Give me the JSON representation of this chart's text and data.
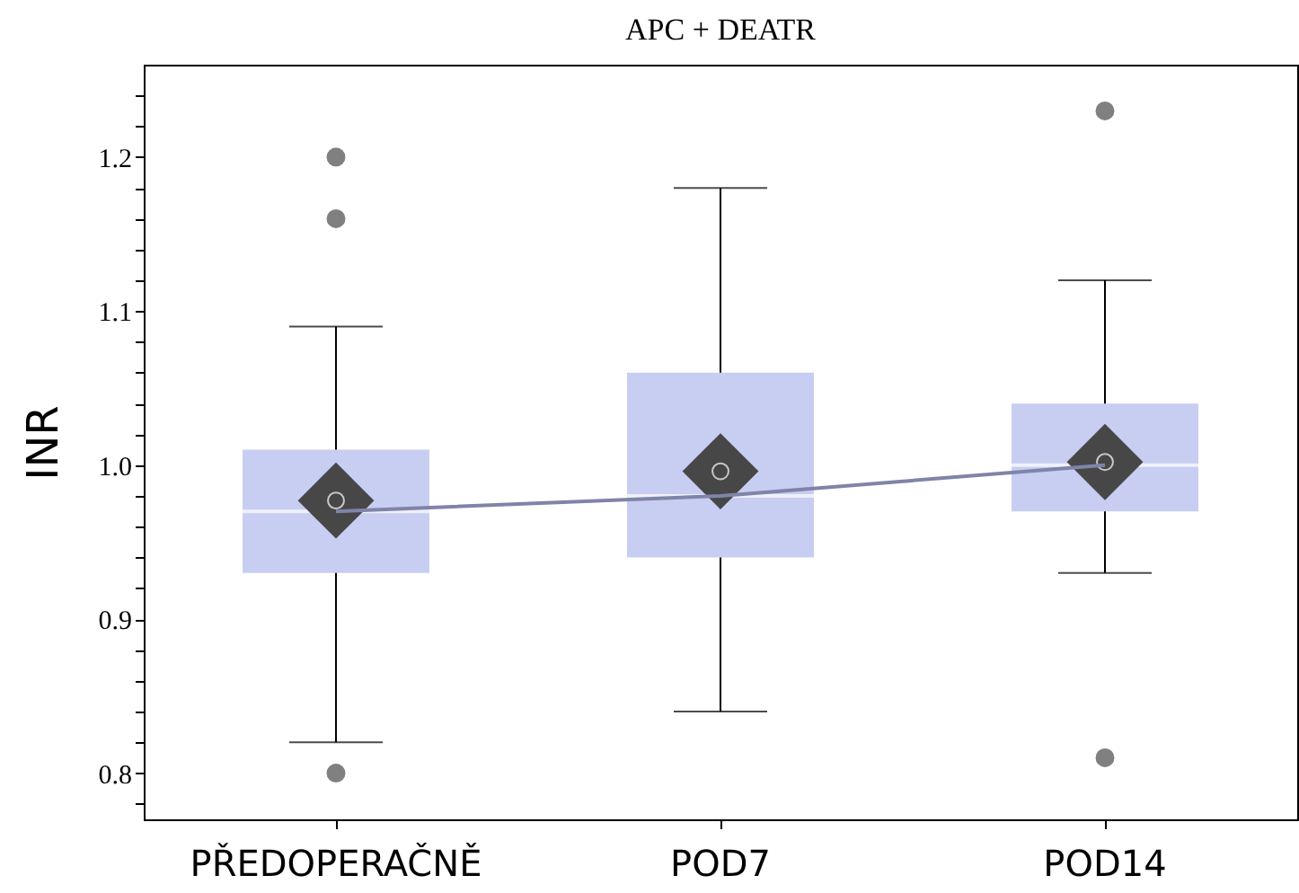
{
  "chart_data": {
    "type": "box",
    "title": "APC + DEATR",
    "ylabel": "INR",
    "categories": [
      "PŘEDOPERAČNĚ",
      "POD7",
      "POD14"
    ],
    "ylim": [
      0.77,
      1.26
    ],
    "yticks": [
      {
        "value": 0.78,
        "label": null
      },
      0.8,
      {
        "value": 0.82,
        "label": null
      },
      {
        "value": 0.84,
        "label": null
      },
      {
        "value": 0.86,
        "label": null
      },
      {
        "value": 0.88,
        "label": null
      },
      0.9,
      {
        "value": 0.92,
        "label": null
      },
      {
        "value": 0.94,
        "label": null
      },
      {
        "value": 0.96,
        "label": null
      },
      {
        "value": 0.98,
        "label": null
      },
      {
        "value": 1.0,
        "label": "1.0"
      },
      {
        "value": 1.02,
        "label": null
      },
      {
        "value": 1.04,
        "label": null
      },
      {
        "value": 1.06,
        "label": null
      },
      {
        "value": 1.08,
        "label": null
      },
      1.1,
      {
        "value": 1.12,
        "label": null
      },
      {
        "value": 1.14,
        "label": null
      },
      {
        "value": 1.16,
        "label": null
      },
      {
        "value": 1.18,
        "label": null
      },
      1.2,
      {
        "value": 1.22,
        "label": null
      },
      {
        "value": 1.24,
        "label": null
      }
    ],
    "color": "#c8cdf2",
    "boxes": [
      {
        "low": 0.82,
        "q1": 0.93,
        "median": 0.97,
        "q3": 1.01,
        "high": 1.09,
        "mean": 0.977,
        "outliers": [
          1.2,
          1.16,
          0.8
        ]
      },
      {
        "low": 0.84,
        "q1": 0.94,
        "median": 0.98,
        "q3": 1.06,
        "high": 1.18,
        "mean": 0.996
      },
      {
        "low": 0.93,
        "q1": 0.97,
        "median": 1.0,
        "q3": 1.04,
        "high": 1.12,
        "mean": 1.002,
        "outliers": [
          1.23,
          0.81
        ]
      }
    ],
    "series": [
      {
        "type": "line",
        "color": "#7f84a8",
        "values": [
          0.97,
          0.98,
          1.0
        ]
      }
    ]
  }
}
